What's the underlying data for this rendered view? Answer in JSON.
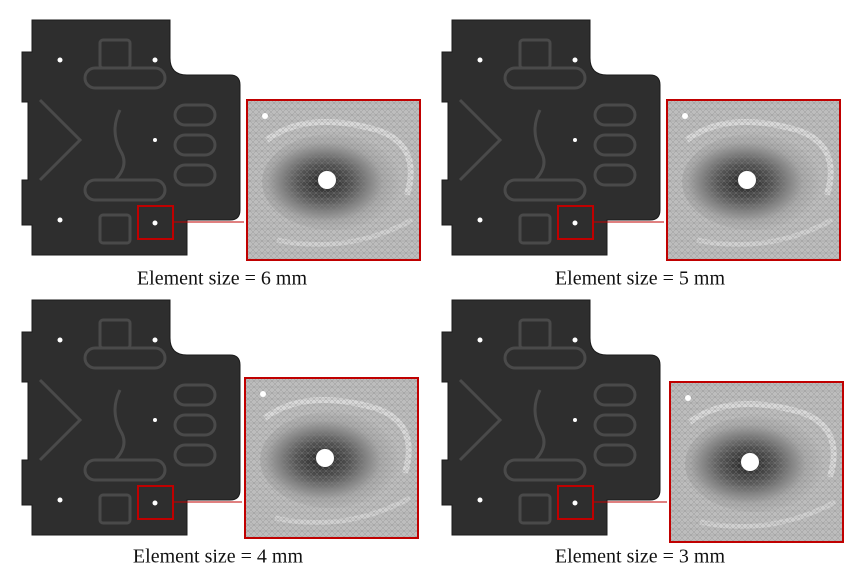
{
  "panels": [
    {
      "caption": "Element size = 6 mm"
    },
    {
      "caption": "Element size = 5 mm"
    },
    {
      "caption": "Element size = 4 mm"
    },
    {
      "caption": "Element size = 3 mm"
    }
  ]
}
